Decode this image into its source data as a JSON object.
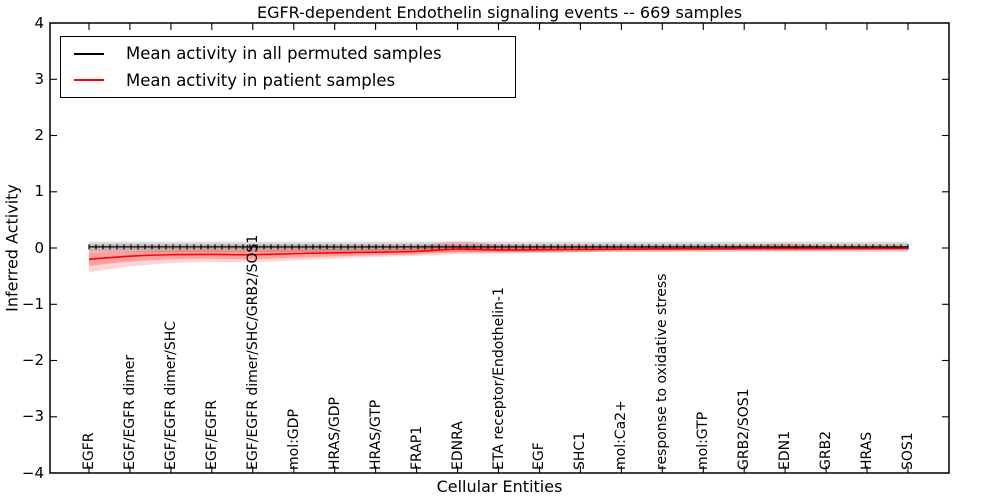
{
  "figure": {
    "title": "EGFR-dependent Endothelin signaling events -- 669 samples",
    "xlabel": "Cellular Entities",
    "ylabel": "Inferred Activity"
  },
  "legend": {
    "position": "upper left",
    "items": [
      {
        "label": "Mean activity in all permuted samples",
        "color": "#000000"
      },
      {
        "label": "Mean activity in patient samples",
        "color": "#ff0000"
      }
    ]
  },
  "chart_data": {
    "type": "line",
    "title": "EGFR-dependent Endothelin signaling events -- 669 samples",
    "xlabel": "Cellular Entities",
    "ylabel": "Inferred Activity",
    "ylim": [
      -4,
      4
    ],
    "yticks": [
      4,
      3,
      2,
      1,
      0,
      -1,
      -2,
      -3,
      -4
    ],
    "ytick_labels": [
      "4",
      "3",
      "2",
      "1",
      "0",
      "−1",
      "−2",
      "−3",
      "−4"
    ],
    "grid": false,
    "legend_position": "upper left",
    "categories": [
      "EGFR",
      "EGF/EGFR dimer",
      "EGF/EGFR dimer/SHC",
      "EGF/EGFR",
      "EGF/EGFR dimer/SHC/GRB2/SOS1",
      "mol:GDP",
      "HRAS/GDP",
      "HRAS/GTP",
      "FRAP1",
      "EDNRA",
      "ETA receptor/Endothelin-1",
      "EGF",
      "SHC1",
      "mol:Ca2+",
      "response to oxidative stress",
      "mol:GTP",
      "GRB2/SOS1",
      "EDN1",
      "GRB2",
      "HRAS",
      "SOS1"
    ],
    "series": [
      {
        "name": "Mean activity in all permuted samples",
        "color": "#000000",
        "marker": "|",
        "values": [
          0.02,
          0.02,
          0.02,
          0.02,
          0.02,
          0.02,
          0.02,
          0.02,
          0.02,
          0.02,
          0.02,
          0.02,
          0.02,
          0.02,
          0.02,
          0.02,
          0.02,
          0.02,
          0.02,
          0.02,
          0.02
        ],
        "band": {
          "upper": 0.11,
          "lower": -0.07,
          "inner_upper": 0.07,
          "inner_lower": -0.03
        }
      },
      {
        "name": "Mean activity in patient samples",
        "color": "#ff0000",
        "marker": null,
        "values": [
          -0.2,
          -0.145,
          -0.12,
          -0.115,
          -0.12,
          -0.1,
          -0.085,
          -0.075,
          -0.06,
          -0.02,
          -0.035,
          -0.03,
          -0.025,
          -0.02,
          -0.015,
          -0.015,
          -0.01,
          -0.005,
          -0.01,
          -0.01,
          -0.005
        ],
        "band": {
          "upper": [
            -0.02,
            -0.01,
            0.0,
            0.0,
            0.01,
            0.01,
            0.02,
            0.02,
            0.04,
            0.12,
            0.06,
            0.04,
            0.04,
            0.03,
            0.03,
            0.03,
            0.04,
            0.08,
            0.03,
            0.03,
            0.03
          ],
          "lower": [
            -0.43,
            -0.33,
            -0.27,
            -0.25,
            -0.25,
            -0.22,
            -0.19,
            -0.16,
            -0.14,
            -0.11,
            -0.1,
            -0.09,
            -0.08,
            -0.06,
            -0.06,
            -0.05,
            -0.05,
            -0.05,
            -0.05,
            -0.04,
            -0.04
          ],
          "inner_upper": [
            -0.08,
            -0.06,
            -0.04,
            -0.04,
            -0.04,
            -0.03,
            -0.02,
            -0.02,
            -0.01,
            0.04,
            0.01,
            0.01,
            0.01,
            0.01,
            0.01,
            0.01,
            0.01,
            0.03,
            0.01,
            0.01,
            0.01
          ],
          "inner_lower": [
            -0.32,
            -0.24,
            -0.2,
            -0.19,
            -0.2,
            -0.17,
            -0.15,
            -0.13,
            -0.11,
            -0.08,
            -0.08,
            -0.07,
            -0.06,
            -0.05,
            -0.04,
            -0.04,
            -0.03,
            -0.04,
            -0.03,
            -0.03,
            -0.02
          ]
        }
      }
    ],
    "marker_points": 118
  }
}
